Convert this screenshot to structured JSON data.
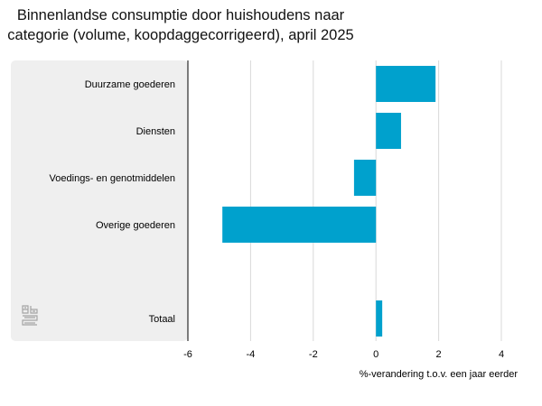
{
  "title_lines": [
    "Binnenlandse consumptie door huishoudens naar",
    "categorie (volume, koopdaggecorrigeerd), april 2025"
  ],
  "logo_icon": "cbs-logo-icon",
  "colors": {
    "bar": "#00a1cd",
    "label_panel": "#efefef",
    "grid": "#d8d8d8",
    "axis": "#000000"
  },
  "chart_data": {
    "type": "bar",
    "orientation": "horizontal",
    "title": "Binnenlandse consumptie door huishoudens naar categorie (volume, koopdaggecorrigeerd), april 2025",
    "categories": [
      "Duurzame goederen",
      "Diensten",
      "Voedings- en genotmiddelen",
      "Overige goederen",
      "Totaal"
    ],
    "values": [
      1.9,
      0.8,
      -0.7,
      -4.9,
      0.2
    ],
    "xlabel": "%-verandering t.o.v. een jaar eerder",
    "ylabel": "",
    "xlim": [
      -6,
      4
    ],
    "xticks": [
      "-6",
      "-4",
      "-2",
      "0",
      "2",
      "4"
    ],
    "grid": true
  }
}
